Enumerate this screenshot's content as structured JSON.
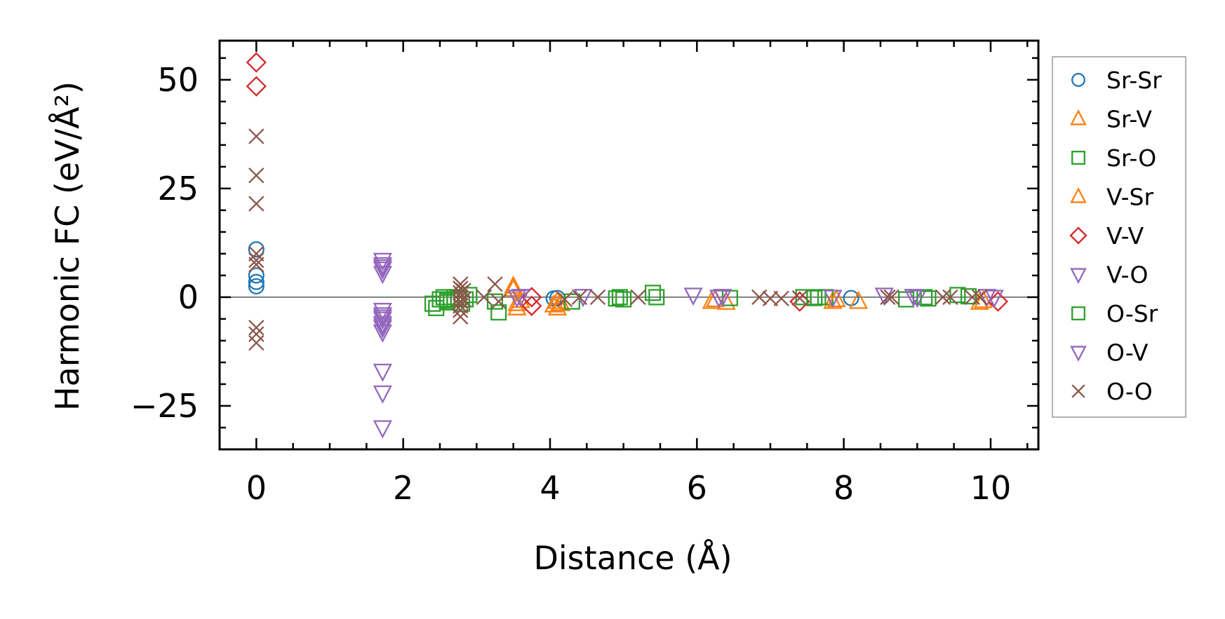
{
  "chart_data": {
    "type": "scatter",
    "xlabel": "Distance (Å)",
    "ylabel": "Harmonic FC (eV/Å²)",
    "xlim": [
      -0.5,
      10.65
    ],
    "ylim": [
      -35,
      59
    ],
    "xticks": [
      0,
      2,
      4,
      6,
      8,
      10
    ],
    "xtick_labels": [
      "0",
      "2",
      "4",
      "6",
      "8",
      "10"
    ],
    "yticks": [
      -25,
      0,
      25,
      50
    ],
    "ytick_labels": [
      "−25",
      "0",
      "25",
      "50"
    ],
    "zero_line": true,
    "grid": false,
    "legend_position": "right",
    "series": [
      {
        "name": "Sr-Sr",
        "marker": "circle",
        "color": "#1f77b4",
        "points": [
          [
            0,
            11
          ],
          [
            0,
            5
          ],
          [
            0,
            3.5
          ],
          [
            0,
            2.5
          ],
          [
            4.05,
            -0.3
          ],
          [
            4.1,
            -0.2
          ],
          [
            8.1,
            -0.2
          ]
        ]
      },
      {
        "name": "Sr-V",
        "marker": "triangle-up",
        "color": "#ff7f0e",
        "points": [
          [
            3.5,
            2.5
          ],
          [
            3.55,
            -1.5
          ],
          [
            3.55,
            -2.5
          ],
          [
            4.1,
            -1
          ],
          [
            4.1,
            -2.5
          ],
          [
            4.15,
            -1.5
          ],
          [
            6.2,
            -1
          ],
          [
            6.4,
            -1.2
          ],
          [
            7.85,
            -1
          ],
          [
            8.2,
            -1
          ],
          [
            9.85,
            -1.2
          ]
        ]
      },
      {
        "name": "Sr-O",
        "marker": "square",
        "color": "#2ca02c",
        "points": [
          [
            2.4,
            -1.5
          ],
          [
            2.45,
            -2.5
          ],
          [
            2.5,
            -0.5
          ],
          [
            2.55,
            0
          ],
          [
            2.6,
            -1.2
          ],
          [
            2.65,
            -0.5
          ],
          [
            2.7,
            0
          ],
          [
            2.85,
            -0.5
          ],
          [
            2.9,
            0.5
          ],
          [
            3.25,
            -1
          ],
          [
            3.3,
            -3.5
          ],
          [
            4.3,
            -1
          ],
          [
            4.95,
            0
          ],
          [
            5.0,
            -0.5
          ],
          [
            5.4,
            1
          ],
          [
            5.45,
            0
          ],
          [
            6.45,
            -0.2
          ],
          [
            7.45,
            0
          ],
          [
            7.65,
            0
          ],
          [
            7.75,
            0
          ],
          [
            8.85,
            -0.5
          ],
          [
            9.1,
            0
          ],
          [
            9.55,
            0.5
          ],
          [
            9.7,
            0.2
          ]
        ]
      },
      {
        "name": "V-Sr",
        "marker": "triangle-up",
        "color": "#ff7f0e",
        "points": [
          [
            3.5,
            1.8
          ],
          [
            3.6,
            -0.8
          ],
          [
            4.05,
            -1.8
          ],
          [
            6.25,
            -0.6
          ],
          [
            7.9,
            -0.6
          ],
          [
            9.9,
            -0.8
          ]
        ]
      },
      {
        "name": "V-V",
        "marker": "diamond",
        "color": "#d62728",
        "points": [
          [
            0,
            54
          ],
          [
            0,
            48.5
          ],
          [
            3.75,
            0
          ],
          [
            3.75,
            -2
          ],
          [
            7.4,
            -1
          ],
          [
            10.1,
            -1
          ]
        ]
      },
      {
        "name": "V-O",
        "marker": "triangle-down",
        "color": "#9467bd",
        "points": [
          [
            1.72,
            8.5
          ],
          [
            1.72,
            7.5
          ],
          [
            1.72,
            6.5
          ],
          [
            1.72,
            5.5
          ],
          [
            1.72,
            -3
          ],
          [
            1.72,
            -4
          ],
          [
            1.72,
            -5
          ],
          [
            1.72,
            -6
          ],
          [
            1.72,
            -7
          ],
          [
            1.72,
            -8
          ],
          [
            1.72,
            -17
          ],
          [
            1.72,
            -22
          ],
          [
            1.72,
            -30
          ],
          [
            3.55,
            0
          ],
          [
            4.45,
            0.2
          ],
          [
            5.95,
            0.5
          ],
          [
            6.3,
            0
          ],
          [
            7.85,
            0
          ],
          [
            8.55,
            0.5
          ],
          [
            9.0,
            0
          ],
          [
            9.95,
            0.2
          ]
        ]
      },
      {
        "name": "O-Sr",
        "marker": "square",
        "color": "#2ca02c",
        "points": [
          [
            2.6,
            -0.8
          ],
          [
            2.75,
            -0.3
          ],
          [
            2.8,
            -1.5
          ],
          [
            4.9,
            -0.3
          ],
          [
            7.6,
            -0.2
          ],
          [
            9.15,
            -0.3
          ]
        ]
      },
      {
        "name": "O-V",
        "marker": "triangle-down",
        "color": "#9467bd",
        "points": [
          [
            1.72,
            7
          ],
          [
            1.72,
            -4.5
          ],
          [
            1.72,
            -6.5
          ],
          [
            3.6,
            0.2
          ],
          [
            6.35,
            0.2
          ],
          [
            8.95,
            0.2
          ],
          [
            10.05,
            0
          ]
        ]
      },
      {
        "name": "O-O",
        "marker": "x",
        "color": "#8c564b",
        "points": [
          [
            0,
            37
          ],
          [
            0,
            28
          ],
          [
            0,
            21.5
          ],
          [
            0,
            10
          ],
          [
            0,
            8.5
          ],
          [
            0,
            7.5
          ],
          [
            0,
            -7
          ],
          [
            0,
            -8.5
          ],
          [
            0,
            -10.5
          ],
          [
            2.78,
            3
          ],
          [
            2.78,
            2
          ],
          [
            2.78,
            1
          ],
          [
            2.78,
            0
          ],
          [
            2.78,
            -1
          ],
          [
            2.78,
            -2
          ],
          [
            2.78,
            -3
          ],
          [
            2.78,
            -4.5
          ],
          [
            2.82,
            1.5
          ],
          [
            2.82,
            -0.5
          ],
          [
            3.1,
            0
          ],
          [
            3.25,
            3
          ],
          [
            3.3,
            -1
          ],
          [
            4.2,
            -0.5
          ],
          [
            4.4,
            0
          ],
          [
            4.65,
            0
          ],
          [
            5.2,
            0
          ],
          [
            6.85,
            0
          ],
          [
            7.0,
            -0.3
          ],
          [
            7.15,
            -0.3
          ],
          [
            7.4,
            -0.2
          ],
          [
            8.6,
            0
          ],
          [
            8.65,
            0
          ],
          [
            9.35,
            0
          ],
          [
            9.45,
            0
          ],
          [
            9.75,
            0
          ],
          [
            9.85,
            0
          ]
        ]
      }
    ]
  }
}
